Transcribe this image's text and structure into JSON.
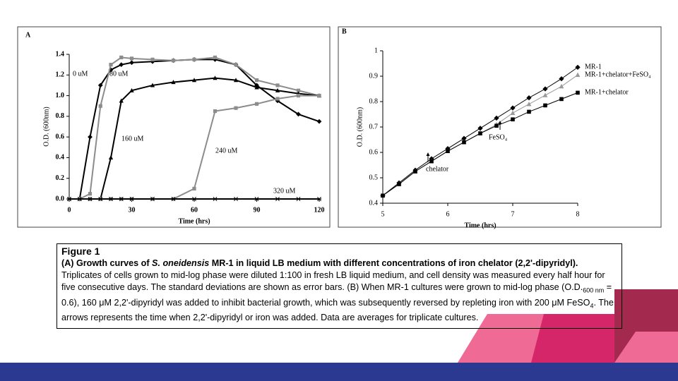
{
  "chart_data": [
    {
      "type": "line",
      "panel": "A",
      "ylabel": "O.D. (600nm)",
      "xlabel": "Time (hrs)",
      "x": [
        0,
        5,
        10,
        15,
        20,
        25,
        30,
        40,
        50,
        60,
        70,
        80,
        90,
        100,
        110,
        120
      ],
      "xlim": [
        0,
        120
      ],
      "xticks": [
        0,
        30,
        60,
        90,
        120
      ],
      "ylim": [
        0,
        1.4
      ],
      "yticks": [
        {
          "value": 0,
          "label": "0.0"
        },
        0.2,
        0.4,
        0.6,
        0.8,
        {
          "value": 1,
          "label": "1.0"
        },
        1.2,
        1.4
      ],
      "series": [
        {
          "name": "0 uM",
          "color": "#000000",
          "values": [
            0,
            0,
            0.6,
            1.1,
            1.25,
            1.3,
            1.32,
            1.33,
            1.34,
            1.35,
            1.35,
            1.3,
            1.1,
            0.95,
            0.82,
            0.75
          ]
        },
        {
          "name": "80 uM",
          "color": "#8c8c8c",
          "values": [
            0,
            0,
            0.05,
            0.9,
            1.3,
            1.37,
            1.36,
            1.35,
            1.34,
            1.35,
            1.37,
            1.3,
            1.15,
            1.1,
            1.05,
            1.0
          ]
        },
        {
          "name": "160 uM",
          "color": "#000000",
          "values": [
            0,
            0,
            0,
            0,
            0.4,
            0.95,
            1.05,
            1.1,
            1.13,
            1.15,
            1.17,
            1.15,
            1.08,
            1.05,
            1.02,
            1.0
          ]
        },
        {
          "name": "240 uM",
          "color": "#8c8c8c",
          "values": [
            0,
            0,
            0,
            0,
            0,
            0,
            0,
            0,
            0,
            0.1,
            0.85,
            0.88,
            0.92,
            0.97,
            1.0,
            1.0
          ]
        },
        {
          "name": "320 uM",
          "color": "#000000",
          "values": [
            0,
            0,
            0,
            0,
            0,
            0,
            0,
            0,
            0,
            0,
            0,
            0,
            0,
            0,
            0,
            0
          ]
        }
      ]
    },
    {
      "type": "line",
      "panel": "B",
      "ylabel": "O.D. (600nm)",
      "xlabel": "Time (hrs)",
      "x": [
        5,
        5.25,
        5.5,
        5.75,
        6,
        6.25,
        6.5,
        6.75,
        7,
        7.25,
        7.5,
        7.75,
        8
      ],
      "xlim": [
        5,
        8
      ],
      "xticks": [
        5,
        6,
        7,
        8
      ],
      "ylim": [
        0.4,
        1
      ],
      "yticks": [
        0.4,
        0.5,
        0.6,
        0.7,
        0.8,
        0.9,
        1
      ],
      "series": [
        {
          "name": "MR-1",
          "color": "#000000",
          "values": [
            0.43,
            0.48,
            0.53,
            0.575,
            0.615,
            0.655,
            0.695,
            0.735,
            0.775,
            0.815,
            0.85,
            0.89,
            0.935
          ]
        },
        {
          "name": "MR-1+chelator+FeSO₄",
          "color": "#9a9a9a",
          "values": [
            0.43,
            0.475,
            0.525,
            0.565,
            0.605,
            0.64,
            0.675,
            0.71,
            0.755,
            0.79,
            0.825,
            0.86,
            0.905
          ]
        },
        {
          "name": "MR-1+chelator",
          "color": "#000000",
          "values": [
            0.43,
            0.475,
            0.525,
            0.565,
            0.605,
            0.64,
            0.675,
            0.705,
            0.73,
            0.76,
            0.785,
            0.81,
            0.835
          ]
        }
      ],
      "annotations": [
        "chelator",
        "FeSO₄"
      ]
    }
  ],
  "caption": {
    "title": "Figure 1",
    "segments": [
      "(A) Growth curves of ",
      "S. oneidensis",
      " MR-1 in liquid LB medium with different concentrations of iron chelator (2,2'-dipyridyl).",
      " Triplicates of cells grown to mid-log phase were diluted 1:100 in fresh LB liquid medium, and cell density was measured every half hour for five consecutive days. The standard deviations are shown as error bars. (B) When MR-1 cultures were grown to mid-log phase (O.D.",
      "600 nm",
      " = 0.6), 160 μM 2,2'-dipyridyl was added to inhibit bacterial growth, which was subsequently reversed by repleting iron with 200 μM FeSO",
      "4",
      ". The arrows represents the time when 2,2'-dipyridyl or iron was added. Data are averages for triplicate cultures."
    ]
  }
}
